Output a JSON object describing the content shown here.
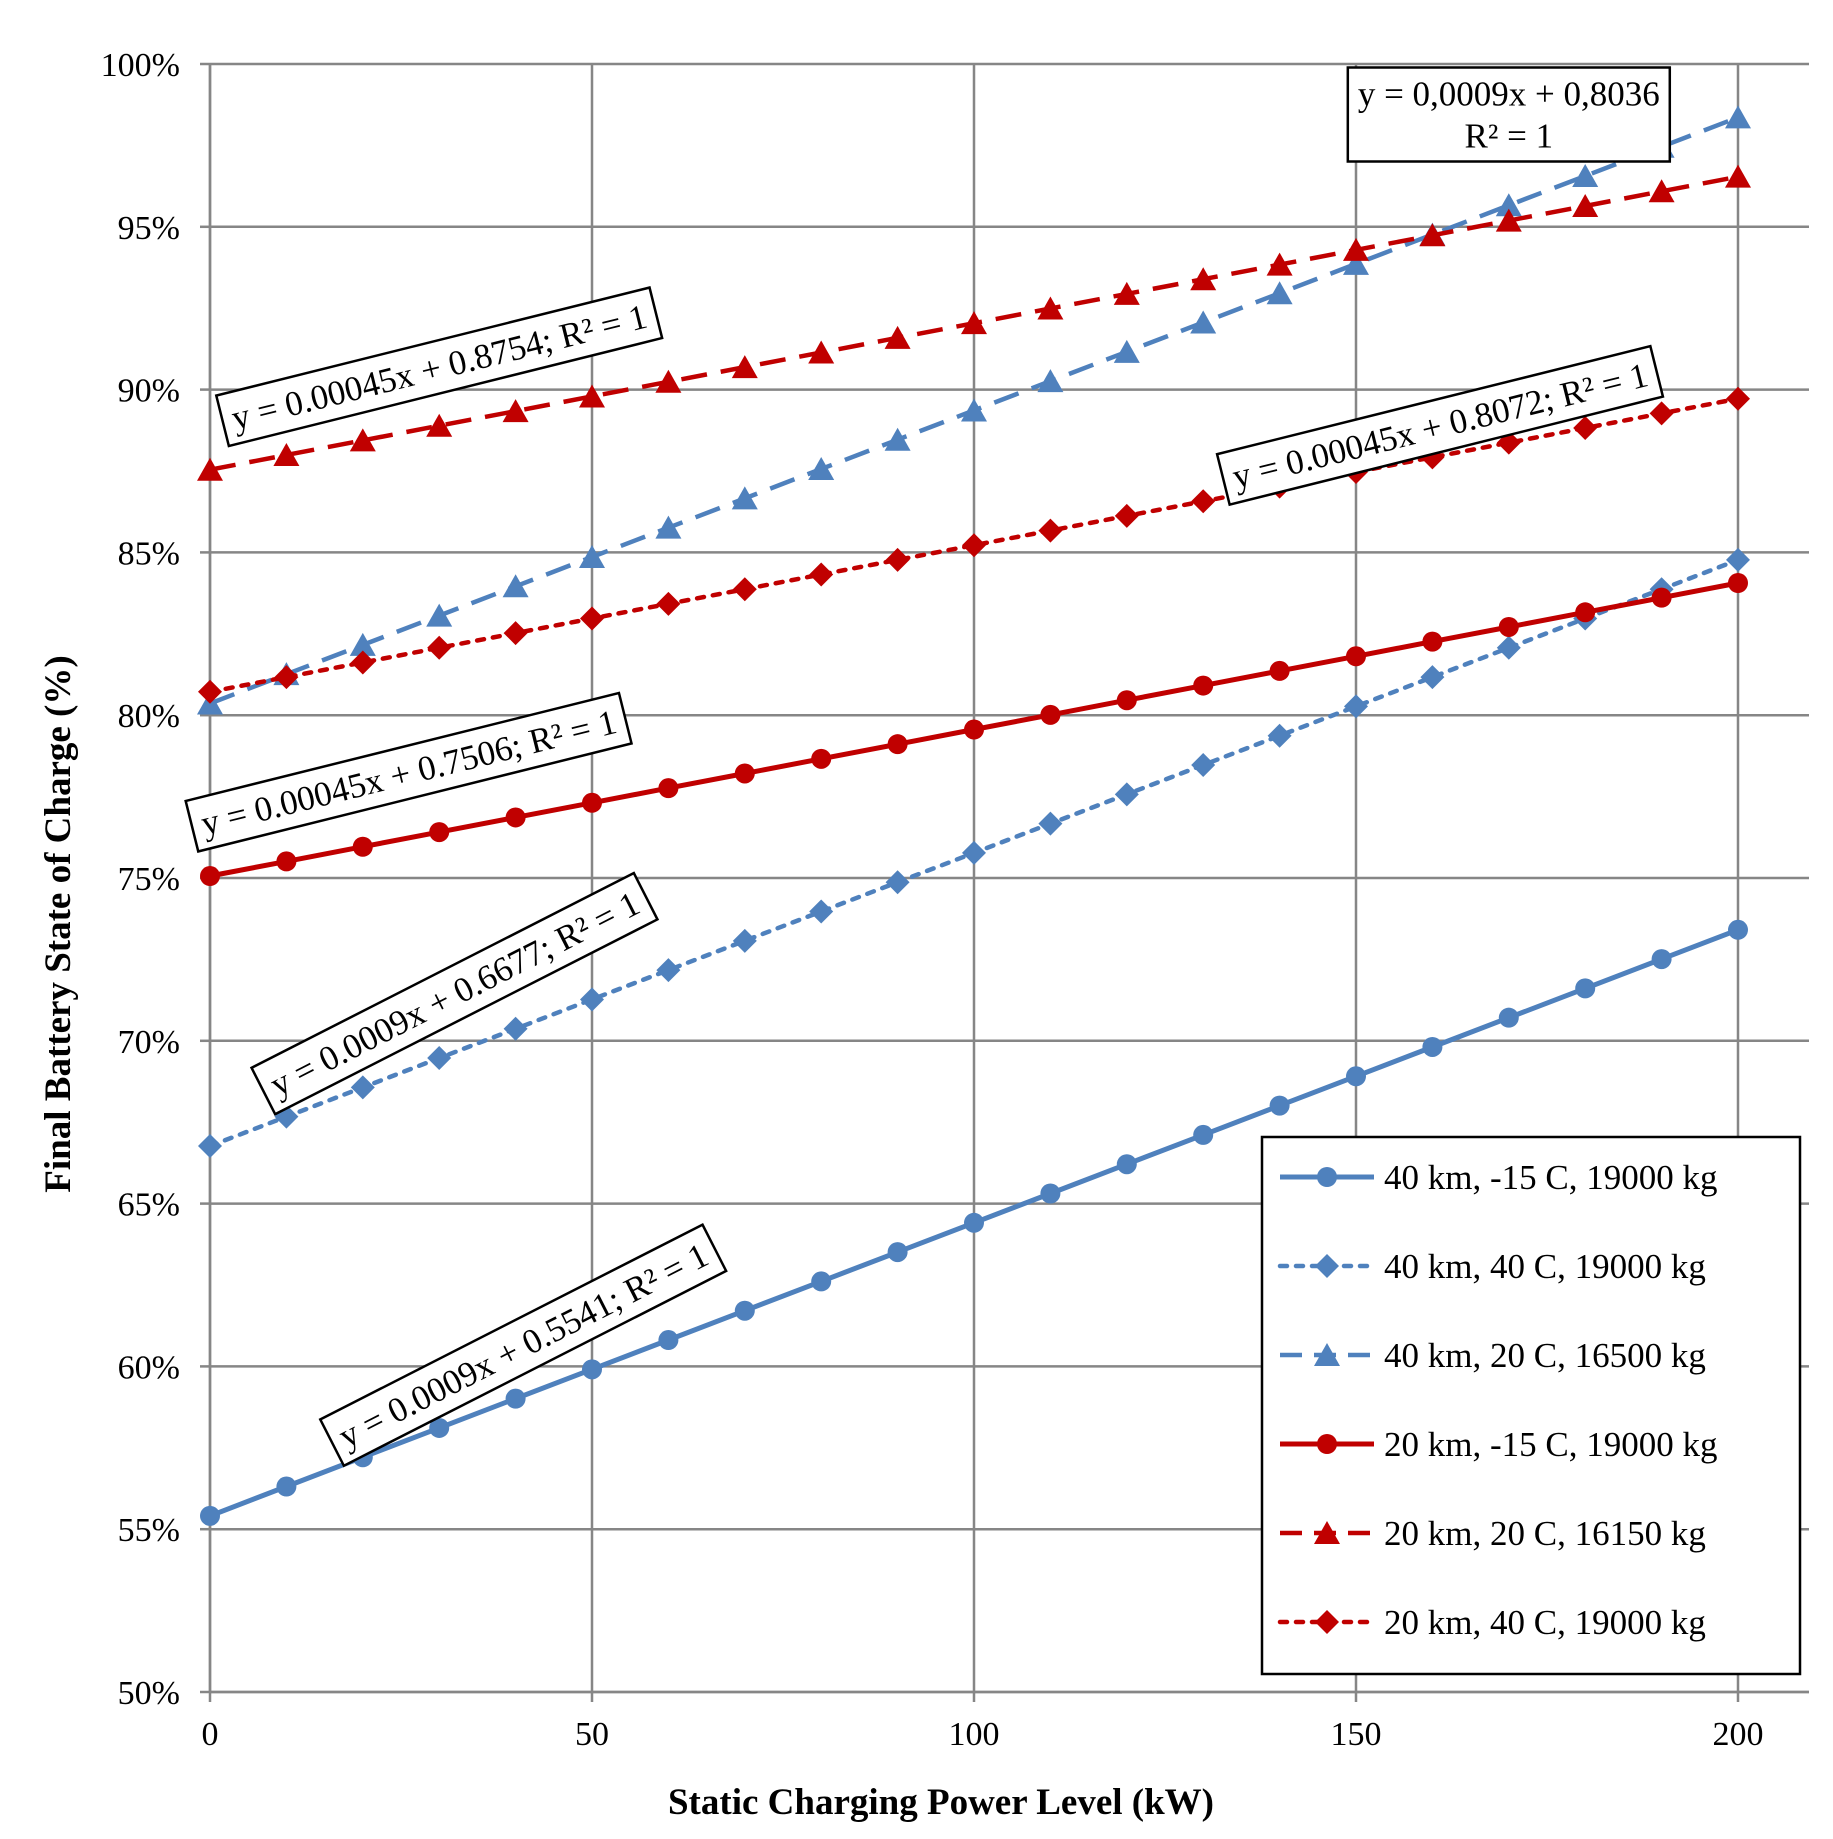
{
  "chart_data": {
    "type": "line",
    "title": "",
    "xlabel": "Static Charging Power Level (kW)",
    "ylabel": "Final Battery State of Charge (%)",
    "xlim": [
      0,
      210
    ],
    "ylim": [
      0.5,
      1.0
    ],
    "x_ticks": [
      0,
      50,
      100,
      150,
      200
    ],
    "y_ticks": [
      0.5,
      0.55,
      0.6,
      0.65,
      0.7,
      0.75,
      0.8,
      0.85,
      0.9,
      0.95,
      1.0
    ],
    "x_tick_labels": [
      "0",
      "50",
      "100",
      "150",
      "200"
    ],
    "y_tick_labels": [
      "50%",
      "55%",
      "60%",
      "65%",
      "70%",
      "75%",
      "80%",
      "85%",
      "90%",
      "95%",
      "100%"
    ],
    "grid": true,
    "legend_position": "bottom-right",
    "x": [
      0,
      10,
      20,
      30,
      40,
      50,
      60,
      70,
      80,
      90,
      100,
      110,
      120,
      130,
      140,
      150,
      160,
      170,
      180,
      190,
      200
    ],
    "series": [
      {
        "name": "40 km, -15 C, 19000 kg",
        "color": "#4f81bd",
        "line_style": "solid",
        "marker": "circle",
        "values": [
          0.5541,
          0.5631,
          0.5721,
          0.5811,
          0.5901,
          0.5991,
          0.6081,
          0.6171,
          0.6261,
          0.6351,
          0.6441,
          0.6531,
          0.6621,
          0.6711,
          0.6801,
          0.6891,
          0.6981,
          0.7071,
          0.7161,
          0.7251,
          0.7341
        ]
      },
      {
        "name": "40 km, 40 C, 19000 kg",
        "color": "#4f81bd",
        "line_style": "dotted",
        "marker": "diamond",
        "values": [
          0.6677,
          0.6767,
          0.6857,
          0.6947,
          0.7037,
          0.7127,
          0.7217,
          0.7307,
          0.7397,
          0.7487,
          0.7577,
          0.7667,
          0.7757,
          0.7847,
          0.7937,
          0.8027,
          0.8117,
          0.8207,
          0.8297,
          0.8387,
          0.8477
        ]
      },
      {
        "name": "40 km, 20 C, 16500 kg",
        "color": "#4f81bd",
        "line_style": "dashed",
        "marker": "triangle",
        "values": [
          0.8036,
          0.8126,
          0.8216,
          0.8306,
          0.8396,
          0.8486,
          0.8576,
          0.8666,
          0.8756,
          0.8846,
          0.8936,
          0.9026,
          0.9116,
          0.9206,
          0.9296,
          0.9386,
          0.9476,
          0.9566,
          0.9656,
          0.9746,
          0.9836
        ]
      },
      {
        "name": "20 km, -15 C, 19000 kg",
        "color": "#c00000",
        "line_style": "solid",
        "marker": "circle",
        "values": [
          0.7506,
          0.7551,
          0.7596,
          0.7641,
          0.7686,
          0.7731,
          0.7776,
          0.7821,
          0.7866,
          0.7911,
          0.7956,
          0.8001,
          0.8046,
          0.8091,
          0.8136,
          0.8181,
          0.8226,
          0.8271,
          0.8316,
          0.8361,
          0.8406
        ]
      },
      {
        "name": "20 km, 20 C, 16150 kg",
        "color": "#c00000",
        "line_style": "dashed",
        "marker": "triangle",
        "values": [
          0.8754,
          0.8799,
          0.8844,
          0.8889,
          0.8934,
          0.8979,
          0.9024,
          0.9069,
          0.9114,
          0.9159,
          0.9204,
          0.9249,
          0.9294,
          0.9339,
          0.9384,
          0.9429,
          0.9474,
          0.9519,
          0.9564,
          0.9609,
          0.9654
        ]
      },
      {
        "name": "20 km, 40 C, 19000 kg",
        "color": "#c00000",
        "line_style": "dotted",
        "marker": "diamond",
        "values": [
          0.8072,
          0.8117,
          0.8162,
          0.8207,
          0.8252,
          0.8297,
          0.8342,
          0.8387,
          0.8432,
          0.8477,
          0.8522,
          0.8567,
          0.8612,
          0.8657,
          0.8702,
          0.8747,
          0.8792,
          0.8837,
          0.8882,
          0.8927,
          0.8972
        ]
      }
    ],
    "annotations": [
      {
        "lines": [
          "y = 0,0009x + 0,8036",
          "R² = 1"
        ],
        "x": 170,
        "y": 0.9845,
        "angle_deg": 0
      },
      {
        "lines": [
          "y = 0.00045x + 0.8754; R² = 1"
        ],
        "x": 30,
        "y": 0.907,
        "angle_deg": -14
      },
      {
        "lines": [
          "y = 0.00045x + 0.8072; R² = 1"
        ],
        "x": 161,
        "y": 0.889,
        "angle_deg": -14
      },
      {
        "lines": [
          "y = 0.00045x + 0.7506; R² = 1"
        ],
        "x": 26,
        "y": 0.7825,
        "angle_deg": -14
      },
      {
        "lines": [
          "y = 0.0009x + 0.6677; R² = 1"
        ],
        "x": 32,
        "y": 0.7145,
        "angle_deg": -27
      },
      {
        "lines": [
          "y = 0.0009x + 0.5541; R² = 1"
        ],
        "x": 41,
        "y": 0.6065,
        "angle_deg": -27
      }
    ]
  }
}
